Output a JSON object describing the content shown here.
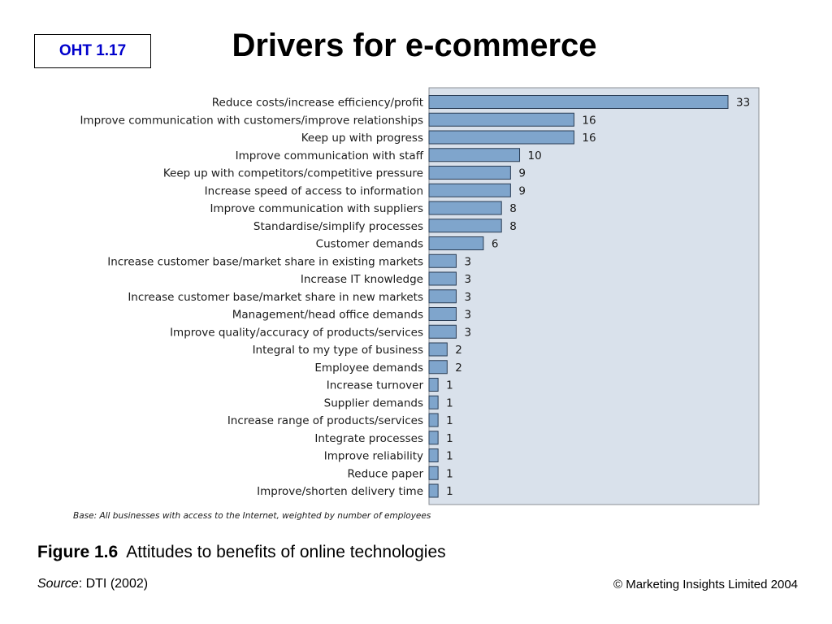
{
  "header": {
    "slide_code": "OHT 1.17",
    "title": "Drivers for e-commerce"
  },
  "chart_data": {
    "type": "bar",
    "orientation": "horizontal",
    "categories": [
      "Reduce costs/increase efficiency/profit",
      "Improve communication with customers/improve relationships",
      "Keep up with progress",
      "Improve communication with staff",
      "Keep up with competitors/competitive pressure",
      "Increase speed of access to information",
      "Improve communication with suppliers",
      "Standardise/simplify processes",
      "Customer demands",
      "Increase customer base/market share in existing markets",
      "Increase IT knowledge",
      "Increase customer base/market share in new markets",
      "Management/head office demands",
      "Improve quality/accuracy of products/services",
      "Integral to my type of business",
      "Employee demands",
      "Increase turnover",
      "Supplier demands",
      "Increase range of products/services",
      "Integrate processes",
      "Improve reliability",
      "Reduce paper",
      "Improve/shorten delivery time"
    ],
    "values": [
      33,
      16,
      16,
      10,
      9,
      9,
      8,
      8,
      6,
      3,
      3,
      3,
      3,
      3,
      2,
      2,
      1,
      1,
      1,
      1,
      1,
      1,
      1
    ],
    "value_labels": [
      "33",
      "16",
      "16",
      "10",
      "9",
      "9",
      "8",
      "8",
      "6",
      "3",
      "3",
      "3",
      "3",
      "3",
      "2",
      "2",
      "1",
      "1",
      "1",
      "1",
      "1",
      "1",
      "1"
    ],
    "xlim": [
      0,
      33
    ],
    "grid": false,
    "note": "Base: All businesses with access to the Internet, weighted by number of employees",
    "colors": {
      "plot_background": "#d9e1eb",
      "bar_fill": "#7fa5cc",
      "bar_stroke": "#2a3d55"
    }
  },
  "caption": {
    "figure_number": "Figure 1.6",
    "text": "Attitudes to benefits of online technologies"
  },
  "source": {
    "label": "Source",
    "text": ": DTI (2002)"
  },
  "copyright": "© Marketing Insights Limited 2004"
}
